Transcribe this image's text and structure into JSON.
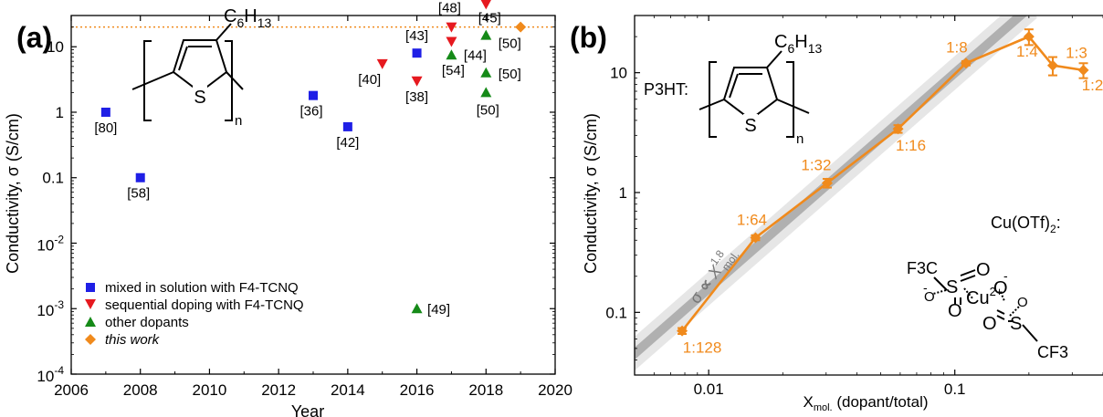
{
  "chart_data": [
    {
      "panel_label": "(a)",
      "type": "scatter",
      "xlabel": "Year",
      "ylabel": "Conductivity, σ (S/cm)",
      "x_scale": "linear",
      "y_scale": "log",
      "xlim": [
        2006,
        2020
      ],
      "ylim": [
        0.0001,
        30
      ],
      "x_ticks": [
        "2006",
        "2008",
        "2010",
        "2012",
        "2014",
        "2016",
        "2018",
        "2020"
      ],
      "y_ticks": [
        {
          "v": 0.0001,
          "base": "10",
          "exp": "-4"
        },
        {
          "v": 0.001,
          "base": "10",
          "exp": "-3"
        },
        {
          "v": 0.01,
          "base": "10",
          "exp": "-2"
        },
        {
          "v": 0.1,
          "label": "0.1"
        },
        {
          "v": 1,
          "label": "1"
        },
        {
          "v": 10,
          "label": "10"
        }
      ],
      "reference_line": {
        "y": 20,
        "color": "#f08a1c",
        "style": "dotted"
      },
      "molecule": {
        "substituent_main": "C",
        "substituent_sub1": "6",
        "substituent_h": "H",
        "substituent_sub2": "13",
        "ring_atom": "S",
        "repeat": "n"
      },
      "legend_position": "bottom-left",
      "series": [
        {
          "name": "mixed in solution with F4-TCNQ",
          "marker": "square",
          "color": "#1f1fe6",
          "points": [
            {
              "x": 2007,
              "y": 1.0,
              "label": "[80]"
            },
            {
              "x": 2008,
              "y": 0.1,
              "label": "[58]"
            },
            {
              "x": 2013,
              "y": 1.8,
              "label": "[36]"
            },
            {
              "x": 2014,
              "y": 0.6,
              "label": "[42]"
            },
            {
              "x": 2016,
              "y": 8,
              "label": "[43]"
            }
          ]
        },
        {
          "name": "sequential doping with F4-TCNQ",
          "marker": "triangle-down",
          "color": "#e6191f",
          "points": [
            {
              "x": 2015,
              "y": 5.5,
              "label": "[40]"
            },
            {
              "x": 2016,
              "y": 3,
              "label": "[38]"
            },
            {
              "x": 2017,
              "y": 20,
              "label": "[48]"
            },
            {
              "x": 2017,
              "y": 12,
              "label": "[44]"
            },
            {
              "x": 2018,
              "y": 45,
              "label": "[45]"
            }
          ]
        },
        {
          "name": "other dopants",
          "marker": "triangle-up",
          "color": "#158a18",
          "points": [
            {
              "x": 2016,
              "y": 0.001,
              "label": "[49]"
            },
            {
              "x": 2017,
              "y": 7.5,
              "label": "[54]"
            },
            {
              "x": 2018,
              "y": 15,
              "label": "[50]"
            },
            {
              "x": 2018,
              "y": 4,
              "label": "[50]"
            },
            {
              "x": 2018,
              "y": 2,
              "label": "[50]"
            }
          ]
        },
        {
          "name": "this work",
          "marker": "diamond",
          "color": "#f08a1c",
          "points": [
            {
              "x": 2019,
              "y": 20,
              "label": ""
            }
          ]
        }
      ]
    },
    {
      "panel_label": "(b)",
      "type": "line",
      "xlabel_main": "X",
      "xlabel_sub": "mol.",
      "xlabel_rest": " (dopant/total)",
      "ylabel": "Conductivity, σ (S/cm)",
      "x_scale": "log",
      "y_scale": "log",
      "xlim": [
        0.005,
        0.4
      ],
      "ylim": [
        0.03,
        30
      ],
      "x_ticks": [
        {
          "v": 0.01,
          "label": "0.01"
        },
        {
          "v": 0.1,
          "label": "0.1"
        }
      ],
      "y_ticks": [
        {
          "v": 0.1,
          "label": "0.1"
        },
        {
          "v": 1,
          "label": "1"
        },
        {
          "v": 10,
          "label": "10"
        }
      ],
      "color": "#f08a1c",
      "polymer_label": "P3HT:",
      "molecule": {
        "substituent_main": "C",
        "substituent_sub1": "6",
        "substituent_h": "H",
        "substituent_sub2": "13",
        "ring_atom": "S",
        "repeat": "n"
      },
      "dopant": {
        "name_main": "Cu(OTf)",
        "name_sub": "2",
        "name_end": ":",
        "top_group": "F3C",
        "bottom_group": "CF3",
        "sulfur": "S",
        "oxygen": "O",
        "copper": "Cu",
        "copper_charge": "2+",
        "minus": "-"
      },
      "trend": {
        "sigma": "σ",
        "prop": "∝",
        "var": "X",
        "exp": "1.8",
        "sub": "mol.",
        "slope": 1.8
      },
      "points": [
        {
          "x": 0.0078,
          "y": 0.07,
          "err": 0.004,
          "label": "1:128"
        },
        {
          "x": 0.0155,
          "y": 0.42,
          "err": 0.02,
          "label": "1:64"
        },
        {
          "x": 0.0303,
          "y": 1.2,
          "err": 0.1,
          "label": "1:32"
        },
        {
          "x": 0.0588,
          "y": 3.4,
          "err": 0.25,
          "label": "1:16"
        },
        {
          "x": 0.111,
          "y": 12,
          "err": 0.5,
          "label": "1:8"
        },
        {
          "x": 0.2,
          "y": 20,
          "err": 3,
          "label": "1:4"
        },
        {
          "x": 0.25,
          "y": 11.5,
          "err": 2,
          "label": "1:3"
        },
        {
          "x": 0.333,
          "y": 10.5,
          "err": 1.5,
          "label": "1:2"
        }
      ]
    }
  ]
}
